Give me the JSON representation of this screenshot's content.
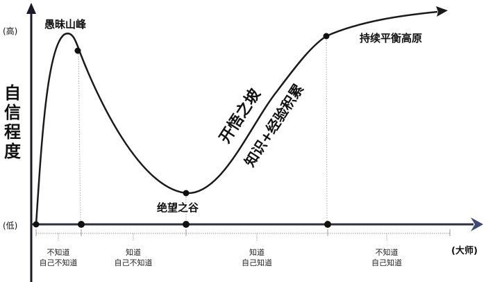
{
  "y_axis": {
    "label": "自信程度",
    "high": "(高)",
    "low": "(低)"
  },
  "x_axis": {
    "end_label": "(大师)"
  },
  "curve_labels": {
    "peak": "愚昧山峰",
    "valley": "绝望之谷",
    "slope": "开悟之坡",
    "slope_sub": "知识+经验积累",
    "plateau": "持续平衡高原"
  },
  "stages": [
    {
      "line1": "不知道",
      "line2": "自己不知道"
    },
    {
      "line1": "知道",
      "line2": "自己不知道"
    },
    {
      "line1": "知道",
      "line2": "自己知道"
    },
    {
      "line1": "不知道",
      "line2": "自己知道"
    }
  ],
  "colors": {
    "curve": "#1a1a1a",
    "x_axis": "#2a2f45",
    "arrow": "#3b4a7a"
  }
}
